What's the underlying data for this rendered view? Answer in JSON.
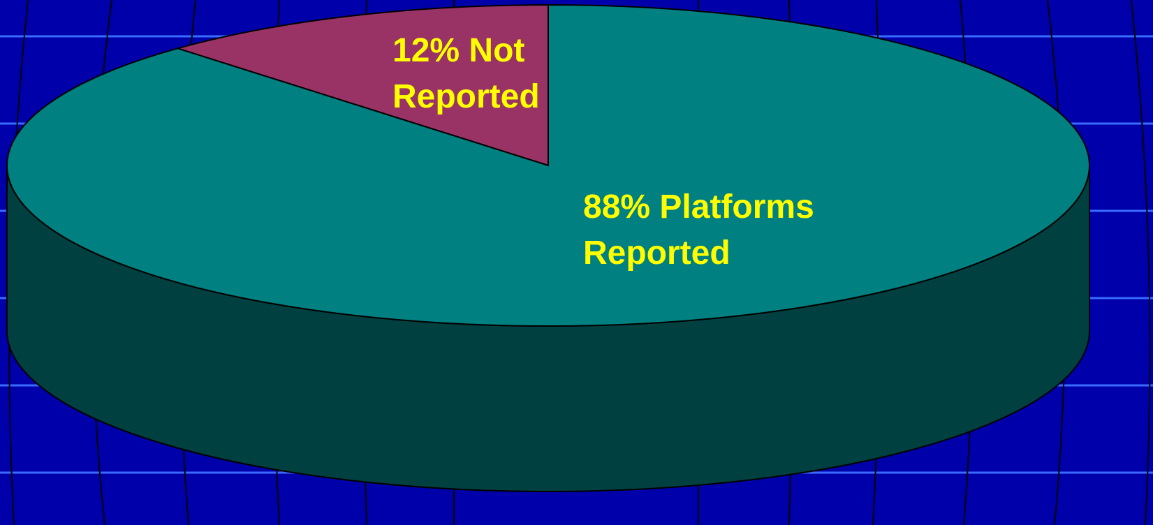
{
  "chart_data": {
    "type": "pie",
    "values": [
      12,
      88
    ],
    "value_labels": [
      "12% Not Reported",
      "88% Platforms Reported"
    ],
    "colors": [
      "#993366",
      "#008080"
    ],
    "label_color": "#ffff00"
  }
}
